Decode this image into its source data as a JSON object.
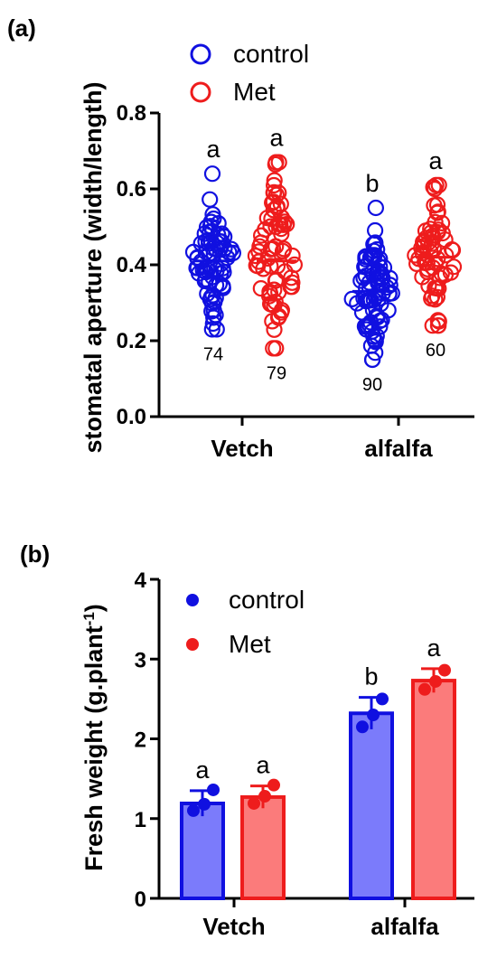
{
  "colors": {
    "control": "#1010e0",
    "met": "#ee1c1c",
    "control_fill": "#7b7bfb",
    "met_fill": "#fb7b7b",
    "axis": "#000000"
  },
  "chart_data": [
    {
      "type": "scatter",
      "panel_label": "(a)",
      "ylabel": "stomatal aperture (width/length)",
      "ylim": [
        0,
        0.8
      ],
      "yticks": [
        "0.0",
        "0.2",
        "0.4",
        "0.6",
        "0.8"
      ],
      "categories": [
        "Vetch",
        "alfalfa"
      ],
      "legend": [
        "control",
        "Met"
      ],
      "legend_position": "top-left",
      "groups": [
        {
          "category": "Vetch",
          "series": "control",
          "mean": 0.41,
          "min": 0.23,
          "max": 0.64,
          "n": "74",
          "letter": "a"
        },
        {
          "category": "Vetch",
          "series": "Met",
          "mean": 0.41,
          "min": 0.18,
          "max": 0.67,
          "n": "79",
          "letter": "a"
        },
        {
          "category": "alfalfa",
          "series": "control",
          "mean": 0.33,
          "min": 0.15,
          "max": 0.55,
          "n": "90",
          "letter": "b"
        },
        {
          "category": "alfalfa",
          "series": "Met",
          "mean": 0.42,
          "min": 0.24,
          "max": 0.61,
          "n": "60",
          "letter": "a"
        }
      ]
    },
    {
      "type": "bar",
      "panel_label": "(b)",
      "ylabel": "Fresh weight (g.plant",
      "ylabel_sup": "-1",
      "ylabel_end": ")",
      "ylim": [
        0,
        4
      ],
      "yticks": [
        "0",
        "1",
        "2",
        "3",
        "4"
      ],
      "categories": [
        "Vetch",
        "alfalfa"
      ],
      "legend": [
        "control",
        "Met"
      ],
      "legend_position": "top-left",
      "series": [
        {
          "name": "control",
          "values": [
            1.19,
            2.32
          ],
          "errors": [
            0.16,
            0.2
          ],
          "points": [
            [
              1.1,
              1.18,
              1.36
            ],
            [
              2.15,
              2.3,
              2.5
            ]
          ],
          "letters": [
            "a",
            "b"
          ]
        },
        {
          "name": "Met",
          "values": [
            1.27,
            2.73
          ],
          "errors": [
            0.14,
            0.15
          ],
          "points": [
            [
              1.19,
              1.28,
              1.42
            ],
            [
              2.62,
              2.72,
              2.86
            ]
          ],
          "letters": [
            "a",
            "a"
          ]
        }
      ]
    }
  ]
}
